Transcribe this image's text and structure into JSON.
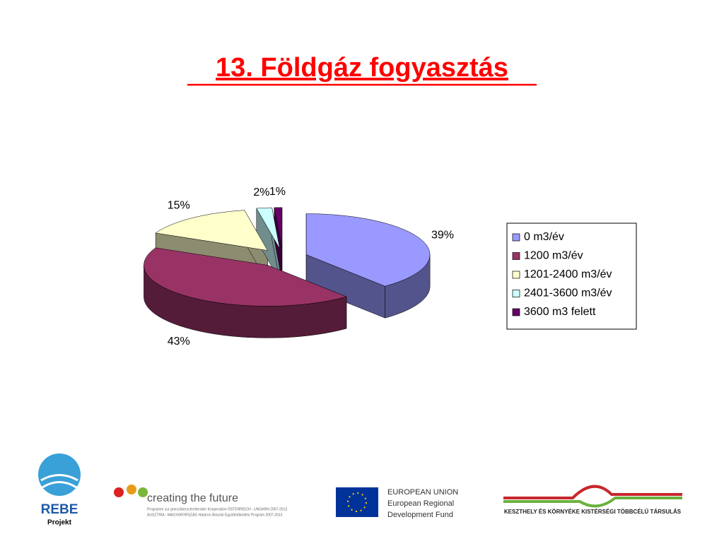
{
  "chart_data": {
    "type": "pie",
    "title": "13. Földgáz fogyasztás",
    "categories": [
      "0 m3/év",
      "1200 m3/év",
      "1201-2400 m3/év",
      "2401-3600 m3/év",
      "3600 m3 felett"
    ],
    "values": [
      39,
      43,
      15,
      2,
      1
    ],
    "value_labels": [
      "39%",
      "43%",
      "15%",
      "2%",
      "1%"
    ],
    "colors": [
      "#9999ff",
      "#993366",
      "#ffffcc",
      "#ccffff",
      "#660066"
    ],
    "legend": "right"
  },
  "footer": {
    "rebe": "REBE",
    "projekt": "Projekt",
    "ctf": "creating the future",
    "ctf_line1": "Programm zur grenzüberschreitenden Kooperation ÖSTERREICH - UNGARN 2007-2013",
    "ctf_line2": "AUSZTRIA - MAGYARORSZÁG Határon Átnyúló Együttműködési Program 2007-2013",
    "eu1": "EUROPEAN UNION",
    "eu2": "European Regional",
    "eu3": "Development Fund",
    "kesz": "KESZTHELY ÉS KÖRNYÉKE KISTÉRSÉGI TÖBBCÉLÚ TÁRSULÁS"
  }
}
